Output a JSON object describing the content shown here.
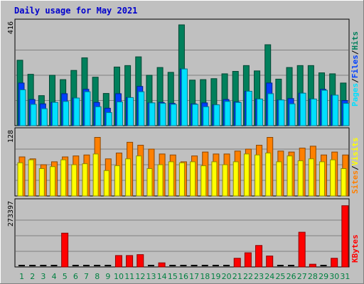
{
  "title": "Daily usage for May 2021",
  "colors": {
    "background": "#c0c0c0",
    "title": "#0000cc",
    "grid": "#808080",
    "hits": "#00805c",
    "files": "#0040ff",
    "pages": "#00e0ff",
    "visits": "#ffff00",
    "sites": "#ff8000",
    "kbytes": "#ff0000",
    "weekday": "#008040",
    "weekend": "#008040"
  },
  "legend": {
    "top": {
      "pages": "Pages",
      "sep1": "/",
      "files": "Files",
      "sep2": "/",
      "hits": "Hits"
    },
    "mid": {
      "sites": "Sites",
      "sep1": "/",
      "visits": "Visits"
    },
    "bottom": {
      "kbytes": "KBytes"
    }
  },
  "chart_data": [
    {
      "type": "bar",
      "ymax_label": "416",
      "ylim": [
        0,
        416
      ],
      "categories": [
        "1",
        "2",
        "3",
        "4",
        "5",
        "6",
        "7",
        "8",
        "9",
        "10",
        "11",
        "12",
        "13",
        "14",
        "15",
        "16",
        "17",
        "18",
        "19",
        "20",
        "21",
        "22",
        "23",
        "24",
        "25",
        "26",
        "27",
        "28",
        "29",
        "30",
        "31"
      ],
      "series": [
        {
          "name": "Hits",
          "values": [
            270,
            212,
            124,
            208,
            190,
            228,
            280,
            200,
            133,
            242,
            248,
            284,
            208,
            240,
            220,
            416,
            188,
            190,
            194,
            214,
            224,
            248,
            226,
            334,
            192,
            240,
            248,
            248,
            218,
            214,
            176
          ]
        },
        {
          "name": "Files",
          "values": [
            176,
            108,
            90,
            96,
            132,
            114,
            150,
            96,
            72,
            132,
            116,
            162,
            94,
            96,
            92,
            234,
            90,
            94,
            86,
            108,
            98,
            142,
            110,
            176,
            106,
            112,
            134,
            110,
            150,
            126,
            104
          ]
        },
        {
          "name": "Pages",
          "values": [
            148,
            88,
            70,
            96,
            100,
            114,
            140,
            78,
            54,
            98,
            116,
            140,
            94,
            92,
            88,
            234,
            88,
            78,
            86,
            100,
            96,
            142,
            110,
            132,
            106,
            90,
            134,
            110,
            146,
            126,
            92
          ]
        }
      ]
    },
    {
      "type": "bar",
      "ymax_label": "128",
      "ylim": [
        0,
        128
      ],
      "categories": [
        "1",
        "2",
        "3",
        "4",
        "5",
        "6",
        "7",
        "8",
        "9",
        "10",
        "11",
        "12",
        "13",
        "14",
        "15",
        "16",
        "17",
        "18",
        "19",
        "20",
        "21",
        "22",
        "23",
        "24",
        "25",
        "26",
        "27",
        "28",
        "29",
        "30",
        "31"
      ],
      "series": [
        {
          "name": "Sites",
          "values": [
            80,
            76,
            64,
            70,
            80,
            82,
            84,
            120,
            76,
            88,
            110,
            104,
            96,
            86,
            84,
            70,
            82,
            90,
            86,
            86,
            92,
            96,
            104,
            120,
            92,
            90,
            98,
            102,
            84,
            90,
            84
          ]
        },
        {
          "name": "Visits",
          "values": [
            68,
            74,
            56,
            60,
            74,
            64,
            66,
            86,
            52,
            62,
            76,
            82,
            56,
            64,
            70,
            68,
            70,
            62,
            70,
            64,
            70,
            86,
            84,
            88,
            70,
            82,
            72,
            76,
            70,
            74,
            56
          ]
        }
      ]
    },
    {
      "type": "bar",
      "ymax_label": "273397",
      "ylim": [
        0,
        273397
      ],
      "categories": [
        "1",
        "2",
        "3",
        "4",
        "5",
        "6",
        "7",
        "8",
        "9",
        "10",
        "11",
        "12",
        "13",
        "14",
        "15",
        "16",
        "17",
        "18",
        "19",
        "20",
        "21",
        "22",
        "23",
        "24",
        "25",
        "26",
        "27",
        "28",
        "29",
        "30",
        "31"
      ],
      "series": [
        {
          "name": "KBytes",
          "values": [
            0,
            0,
            0,
            0,
            148000,
            0,
            0,
            0,
            0,
            50000,
            50000,
            54000,
            0,
            18000,
            0,
            0,
            0,
            0,
            0,
            0,
            38000,
            62000,
            94000,
            48000,
            0,
            0,
            152000,
            12000,
            0,
            38000,
            268000
          ]
        }
      ]
    }
  ]
}
